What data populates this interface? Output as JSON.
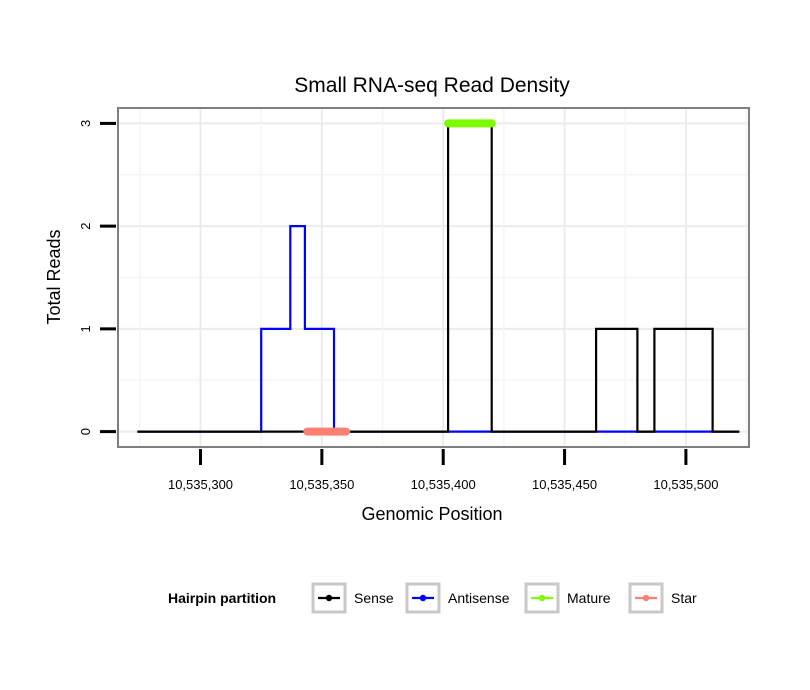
{
  "chart_data": {
    "type": "line",
    "title": "Small RNA-seq Read Density",
    "xlabel": "Genomic Position",
    "ylabel": "Total Reads",
    "xlim": [
      10535266,
      10535526
    ],
    "ylim": [
      -0.15,
      3.15
    ],
    "x_ticks": [
      10535300,
      10535350,
      10535400,
      10535450,
      10535500
    ],
    "x_tick_labels": [
      "10,535,300",
      "10,535,350",
      "10,535,400",
      "10,535,450",
      "10,535,500"
    ],
    "y_ticks": [
      0,
      1,
      2,
      3
    ],
    "y_tick_labels": [
      "0",
      "1",
      "2",
      "3"
    ],
    "grid": true,
    "legend": {
      "title": "Hairpin partition",
      "position": "bottom",
      "entries": [
        {
          "name": "Sense",
          "color": "#000000"
        },
        {
          "name": "Antisense",
          "color": "#0000ff"
        },
        {
          "name": "Mature",
          "color": "#7cfc00"
        },
        {
          "name": "Star",
          "color": "#fa8072"
        }
      ]
    },
    "series": [
      {
        "name": "Sense",
        "color": "#000000",
        "x": [
          10535274,
          10535402,
          10535402,
          10535420,
          10535420,
          10535463,
          10535463,
          10535480,
          10535480,
          10535487,
          10535487,
          10535511,
          10535511,
          10535522
        ],
        "y": [
          0,
          0,
          3,
          3,
          0,
          0,
          1,
          1,
          0,
          0,
          1,
          1,
          0,
          0
        ]
      },
      {
        "name": "Antisense",
        "color": "#0000ff",
        "x": [
          10535274,
          10535325,
          10535325,
          10535337,
          10535337,
          10535343,
          10535343,
          10535355,
          10535355,
          10535522
        ],
        "y": [
          0,
          0,
          1,
          1,
          2,
          2,
          1,
          1,
          0,
          0
        ]
      },
      {
        "name": "Mature",
        "color": "#7cfc00",
        "segments": [
          {
            "x": [
              10535402,
              10535420
            ],
            "y": 3
          }
        ]
      },
      {
        "name": "Star",
        "color": "#fa8072",
        "segments": [
          {
            "x": [
              10535344,
              10535360
            ],
            "y": 0
          }
        ]
      }
    ]
  }
}
